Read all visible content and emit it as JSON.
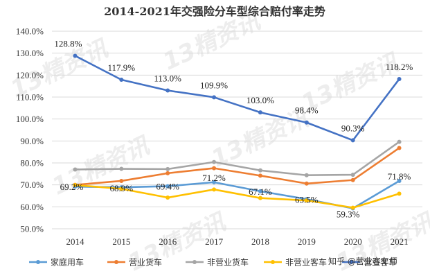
{
  "chart_data": {
    "type": "line",
    "title": "2014-2021年交强险分车型综合赔付率走势",
    "x": [
      "2014",
      "2015",
      "2016",
      "2017",
      "2018",
      "2019",
      "2020",
      "2021"
    ],
    "ylim": [
      50,
      140
    ],
    "yticks": [
      "50.0%",
      "60.0%",
      "70.0%",
      "80.0%",
      "90.0%",
      "100.0%",
      "110.0%",
      "120.0%",
      "130.0%",
      "140.0%"
    ],
    "grid": true,
    "legend_position": "bottom",
    "series": [
      {
        "name": "家庭用车",
        "color": "#5B9BD5",
        "values": [
          69.2,
          68.9,
          69.4,
          71.2,
          67.1,
          63.5,
          59.3,
          71.8
        ],
        "labels": [
          "69.2%",
          "68.9%",
          "69.4%",
          "71.2%",
          "67.1%",
          "63.5%",
          "59.3%",
          "71.8%"
        ]
      },
      {
        "name": "营业货车",
        "color": "#ED7D31",
        "values": [
          70.0,
          71.8,
          75.3,
          77.6,
          74.2,
          70.6,
          72.2,
          86.8
        ]
      },
      {
        "name": "非营业货车",
        "color": "#A5A5A5",
        "values": [
          77.0,
          77.3,
          77.2,
          80.4,
          76.6,
          74.4,
          74.6,
          89.6
        ]
      },
      {
        "name": "非营业客车",
        "color": "#FFC000",
        "values": [
          69.9,
          68.2,
          64.2,
          67.9,
          64.0,
          62.9,
          59.6,
          66.0
        ]
      },
      {
        "name": "营业客车",
        "color": "#4472C4",
        "values": [
          128.8,
          117.9,
          113.0,
          109.9,
          103.0,
          98.4,
          90.3,
          118.2
        ],
        "labels": [
          "128.8%",
          "117.9%",
          "113.0%",
          "109.9%",
          "103.0%",
          "98.4%",
          "90.3%",
          "118.2%"
        ]
      }
    ]
  },
  "watermark": {
    "text": "13精资讯",
    "source": "知乎 @营业客车师"
  }
}
